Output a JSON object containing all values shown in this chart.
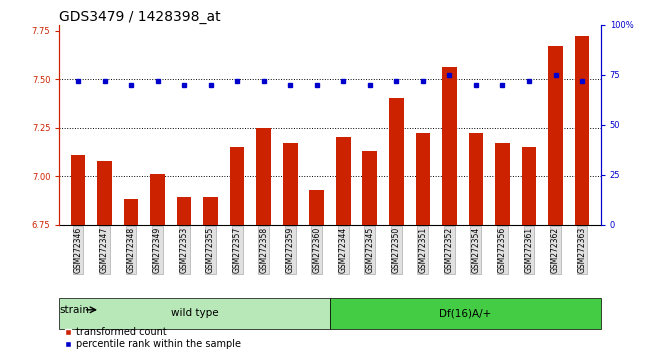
{
  "title": "GDS3479 / 1428398_at",
  "categories": [
    "GSM272346",
    "GSM272347",
    "GSM272348",
    "GSM272349",
    "GSM272353",
    "GSM272355",
    "GSM272357",
    "GSM272358",
    "GSM272359",
    "GSM272360",
    "GSM272344",
    "GSM272345",
    "GSM272350",
    "GSM272351",
    "GSM272352",
    "GSM272354",
    "GSM272356",
    "GSM272361",
    "GSM272362",
    "GSM272363"
  ],
  "bar_values": [
    7.11,
    7.08,
    6.88,
    7.01,
    6.89,
    6.89,
    7.15,
    7.25,
    7.17,
    6.93,
    7.2,
    7.13,
    7.4,
    7.22,
    7.56,
    7.22,
    7.17,
    7.15,
    7.67,
    7.72
  ],
  "percentile_values": [
    72,
    72,
    70,
    72,
    70,
    70,
    72,
    72,
    70,
    70,
    72,
    70,
    72,
    72,
    75,
    70,
    70,
    72,
    75,
    72
  ],
  "bar_color": "#cc2200",
  "dot_color": "#0000cc",
  "bar_bottom": 6.75,
  "ylim_left": [
    6.75,
    7.78
  ],
  "ylim_right": [
    0,
    100
  ],
  "yticks_left": [
    6.75,
    7.0,
    7.25,
    7.5,
    7.75
  ],
  "yticks_right": [
    0,
    25,
    50,
    75,
    100
  ],
  "grid_values": [
    7.0,
    7.25,
    7.5
  ],
  "legend_labels": [
    "transformed count",
    "percentile rank within the sample"
  ],
  "group1_color": "#b8e8b8",
  "group2_color": "#44cc44",
  "title_fontsize": 10,
  "tick_fontsize": 6,
  "label_fontsize": 7.5
}
